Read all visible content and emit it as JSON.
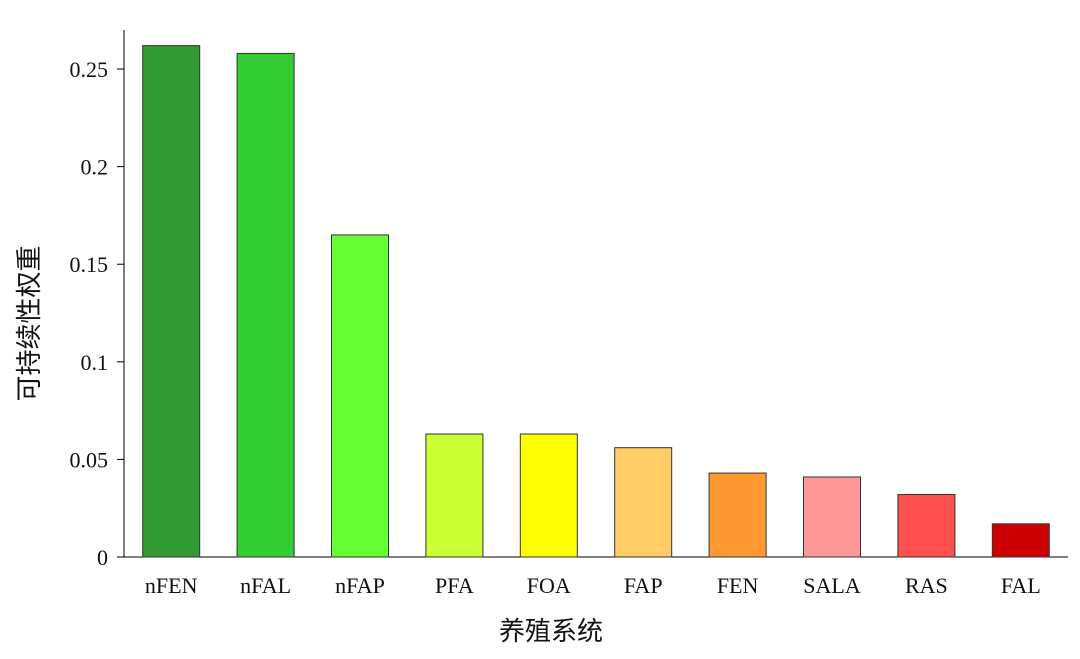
{
  "chart_data": {
    "type": "bar",
    "title": "",
    "xlabel": "养殖系统",
    "ylabel": "可持续性权重",
    "categories": [
      "nFEN",
      "nFAL",
      "nFAP",
      "PFA",
      "FOA",
      "FAP",
      "FEN",
      "SALA",
      "RAS",
      "FAL"
    ],
    "values": [
      0.262,
      0.258,
      0.165,
      0.063,
      0.063,
      0.056,
      0.043,
      0.041,
      0.032,
      0.017
    ],
    "colors": [
      "#339933",
      "#33cc33",
      "#66ff33",
      "#ccff33",
      "#ffff00",
      "#ffcc66",
      "#ff9933",
      "#ff9999",
      "#ff5050",
      "#cc0000"
    ],
    "ylim": [
      0,
      0.27
    ],
    "yticks": [
      0,
      0.05,
      0.1,
      0.15,
      0.2,
      0.25
    ],
    "ytick_labels": [
      "0",
      "0.05",
      "0.1",
      "0.15",
      "0.2",
      "0.25"
    ],
    "grid": false,
    "legend": "none"
  }
}
